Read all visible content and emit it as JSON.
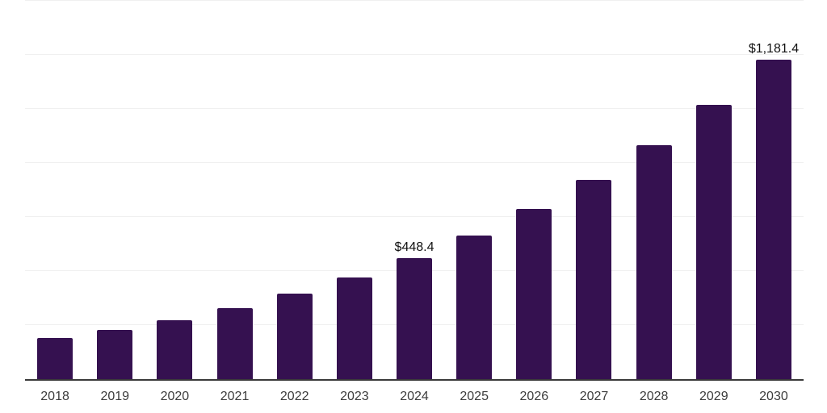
{
  "chart_data": {
    "type": "bar",
    "title": "",
    "xlabel": "",
    "ylabel": "",
    "categories": [
      "2018",
      "2019",
      "2020",
      "2021",
      "2022",
      "2023",
      "2024",
      "2025",
      "2026",
      "2027",
      "2028",
      "2029",
      "2030"
    ],
    "values": [
      152,
      182,
      218,
      263,
      317,
      376,
      448.4,
      531,
      630,
      737,
      866,
      1015,
      1181.4
    ],
    "point_labels": [
      "",
      "",
      "",
      "",
      "",
      "",
      "$448.4",
      "",
      "",
      "",
      "",
      "",
      "$1,181.4"
    ],
    "ylim": [
      0,
      1400
    ],
    "gridline_step": 200,
    "grid": true,
    "legend": false,
    "y_axis_ticks_visible": false,
    "colors": {
      "bar": "#351150",
      "gridline": "#f0f0f0",
      "axis_line": "#3a3a3a",
      "tick_label": "#3c3c3c",
      "value_label": "#111111",
      "background": "#ffffff"
    }
  }
}
